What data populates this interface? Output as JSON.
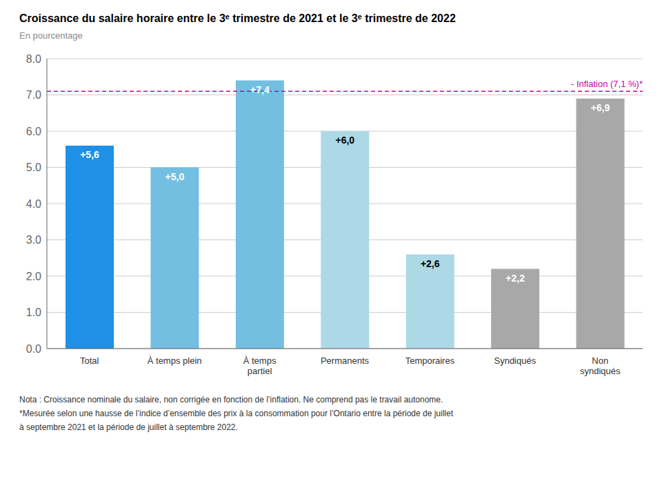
{
  "chart_data": {
    "type": "bar",
    "title": "Croissance du salaire horaire entre le 3ᵉ trimestre de 2021 et le 3ᵉ trimestre de 2022",
    "subtitle": "En pourcentage",
    "categories": [
      "Total",
      "À temps plein",
      "À temps\npartiel",
      "Permanents",
      "Temporaires",
      "Syndiqués",
      "Non\nsyndiqués"
    ],
    "values": [
      5.6,
      5.0,
      7.4,
      6.0,
      2.6,
      2.2,
      6.9
    ],
    "value_labels": [
      "+5,6",
      "+5,0",
      "+7,4",
      "+6,0",
      "+2,6",
      "+2,2",
      "+6,9"
    ],
    "data_labels": true,
    "colors": [
      "#1e90e6",
      "#73bfe2",
      "#73bfe2",
      "#add8e6",
      "#add8e6",
      "#a8a8a8",
      "#a8a8a8"
    ],
    "reference_line": {
      "value": 7.1,
      "label": " - Inflation (7,1 %)*",
      "color": "#cc00aa",
      "line_style": "dashed"
    },
    "ylim": [
      0,
      8.0
    ],
    "yticks": [
      {
        "value": 0.0,
        "label": "0.0"
      },
      {
        "value": 1.0,
        "label": "1.0"
      },
      {
        "value": 2.0,
        "label": "2.0"
      },
      {
        "value": 3.0,
        "label": "3.0"
      },
      {
        "value": 4.0,
        "label": "4.0"
      },
      {
        "value": 5.0,
        "label": "5.0"
      },
      {
        "value": 6.0,
        "label": "6.0"
      },
      {
        "value": 7.0,
        "label": "7.0"
      },
      {
        "value": 8.0,
        "label": "8.0"
      }
    ],
    "grid": true,
    "notes": [
      "Nota : Croissance nominale du salaire, non corrigée en fonction de l’inflation.  Ne comprend pas le travail autonome.",
      "*Mesurée selon une hausse de l’indice d’ensemble des prix à la consommation pour l’Ontario entre la période de juillet",
      "à septembre 2021 et la période de juillet à septembre 2022."
    ]
  }
}
